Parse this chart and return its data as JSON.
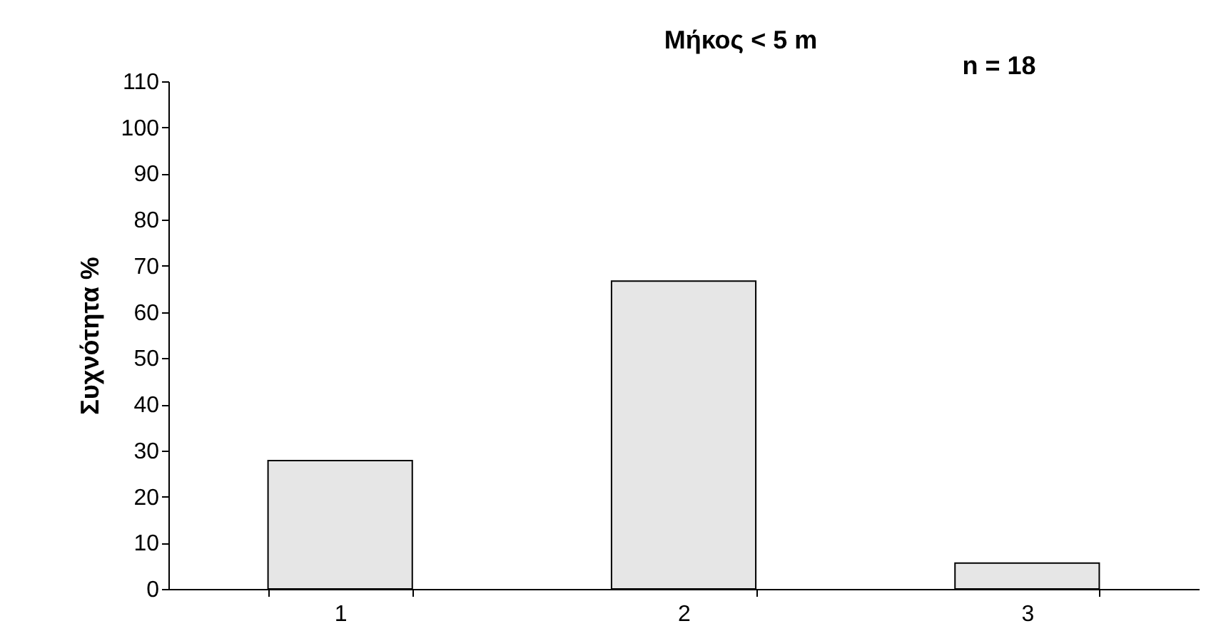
{
  "chart_data": {
    "type": "bar",
    "title": "Μήκος < 5 m",
    "annotations": [
      "n = 18"
    ],
    "ylabel": "Συχνότητα %",
    "categories": [
      "1",
      "2",
      "3"
    ],
    "values": [
      27.8,
      66.7,
      5.6
    ],
    "color": "#e6e6e6",
    "ylim": [
      0,
      110
    ],
    "yticks": [
      0,
      10,
      20,
      30,
      40,
      50,
      60,
      70,
      80,
      90,
      100,
      110
    ]
  }
}
